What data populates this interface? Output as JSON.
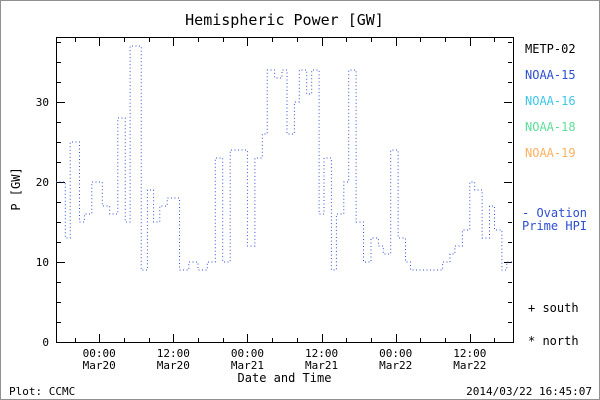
{
  "title": "Hemispheric Power [GW]",
  "axes": {
    "ylabel": "P [GW]",
    "xlabel": "Date and Time",
    "ytick_labels": [
      "0",
      "10",
      "20",
      "30"
    ],
    "xtick_labels": [
      [
        "00:00",
        "Mar20"
      ],
      [
        "12:00",
        "Mar20"
      ],
      [
        "00:00",
        "Mar21"
      ],
      [
        "12:00",
        "Mar21"
      ],
      [
        "00:00",
        "Mar22"
      ],
      [
        "12:00",
        "Mar22"
      ]
    ]
  },
  "legend": {
    "items": [
      {
        "label": "METP-02",
        "color": "#000000"
      },
      {
        "label": "NOAA-15",
        "color": "#2e4fd2"
      },
      {
        "label": "NOAA-16",
        "color": "#3ec6e8"
      },
      {
        "label": "NOAA-18",
        "color": "#5fdd9a"
      },
      {
        "label": "NOAA-19",
        "color": "#ffb060"
      }
    ]
  },
  "annotations": {
    "ovation_line1": "- Ovation",
    "ovation_line2": "Prime HPI",
    "south_label": "+ south",
    "north_label": "* north"
  },
  "footer": {
    "credit": "Plot: CCMC",
    "timestamp": "2014/03/22 16:45:07"
  },
  "chart_data": {
    "type": "line",
    "style": "step-after-dotted",
    "title": "Hemispheric Power [GW]",
    "xlabel": "Date and Time",
    "ylabel": "P [GW]",
    "series_name": "Ovation Prime HPI",
    "legend_entries": [
      "METP-02",
      "NOAA-15",
      "NOAA-16",
      "NOAA-18",
      "NOAA-19"
    ],
    "line_color": "#2e4fd2",
    "x_unit": "hours from Mar20 00:00",
    "xlim": [
      -7,
      67
    ],
    "ylim": [
      0,
      38.125
    ],
    "xticks": [
      0,
      12,
      24,
      36,
      48,
      60
    ],
    "yticks": [
      0,
      10,
      20,
      30
    ],
    "x_minor_step": 4,
    "y_minor_step": 2.5,
    "grid": false,
    "x": [
      -7,
      -5.5,
      -4.7,
      -3.2,
      -2.4,
      -1.2,
      0.5,
      1.7,
      3.0,
      4.2,
      5.0,
      6.8,
      7.8,
      8.8,
      9.8,
      11.0,
      13.0,
      14.5,
      16.0,
      17.5,
      18.8,
      20.0,
      21.2,
      22.8,
      24.0,
      25.2,
      26.4,
      27.2,
      28.4,
      29.6,
      30.4,
      31.6,
      32.4,
      33.6,
      34.4,
      35.6,
      36.4,
      37.6,
      38.4,
      39.6,
      40.4,
      41.6,
      42.8,
      44.0,
      45.2,
      46.0,
      47.2,
      48.4,
      49.6,
      50.4,
      52.0,
      54.0,
      55.6,
      56.8,
      57.6,
      58.8,
      60.0,
      60.8,
      62.0,
      63.2,
      64.0,
      65.2,
      66.0
    ],
    "y": [
      20,
      13,
      25,
      15,
      16,
      20,
      17,
      16,
      28,
      15,
      37,
      9,
      19,
      15,
      17,
      18,
      9,
      10,
      9,
      10,
      23,
      10,
      24,
      24,
      12,
      23,
      26,
      34,
      33,
      34,
      26,
      30,
      34,
      31,
      34,
      16,
      23,
      9,
      16,
      20,
      34,
      15,
      10,
      13,
      12,
      11,
      24,
      13,
      10,
      9,
      9,
      9,
      10,
      11,
      12,
      14,
      20,
      19,
      13,
      17,
      14,
      9,
      10
    ]
  }
}
